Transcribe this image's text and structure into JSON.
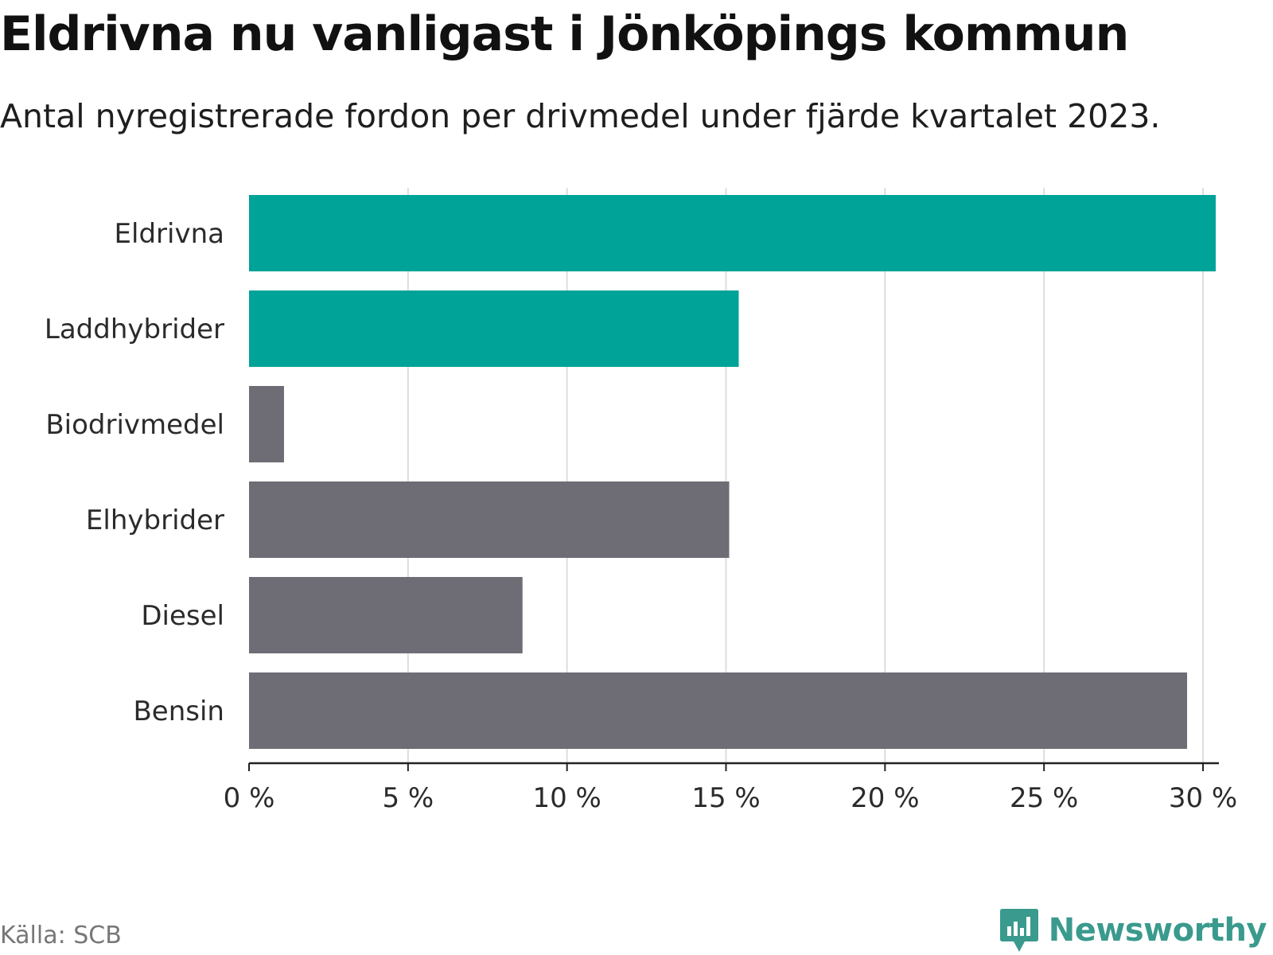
{
  "header": {
    "title": "Eldrivna nu vanligast i Jönköpings kommun",
    "subtitle": "Antal nyregistrerade fordon per drivmedel under fjärde kvartalet 2023."
  },
  "footer": {
    "source": "Källa: SCB",
    "brand": "Newsworthy"
  },
  "colors": {
    "highlight": "#00a398",
    "default": "#6e6d75",
    "grid": "#dddddd",
    "axis": "#222222",
    "brand": "#3a9a8d"
  },
  "chart_data": {
    "type": "bar",
    "orientation": "horizontal",
    "title": "Eldrivna nu vanligast i Jönköpings kommun",
    "subtitle": "Antal nyregistrerade fordon per drivmedel under fjärde kvartalet 2023.",
    "categories": [
      "Eldrivna",
      "Laddhybrider",
      "Biodrivmedel",
      "Elhybrider",
      "Diesel",
      "Bensin"
    ],
    "values": [
      30.4,
      15.4,
      1.1,
      15.1,
      8.6,
      29.5
    ],
    "highlighted": [
      true,
      true,
      false,
      false,
      false,
      false
    ],
    "xlim": [
      0,
      30.5
    ],
    "xticks": [
      0,
      5,
      10,
      15,
      20,
      25,
      30
    ],
    "xtick_labels": [
      "0 %",
      "5 %",
      "10 %",
      "15 %",
      "20 %",
      "25 %",
      "30 %"
    ],
    "xlabel": "",
    "ylabel": "",
    "grid": true,
    "unit": "%"
  }
}
